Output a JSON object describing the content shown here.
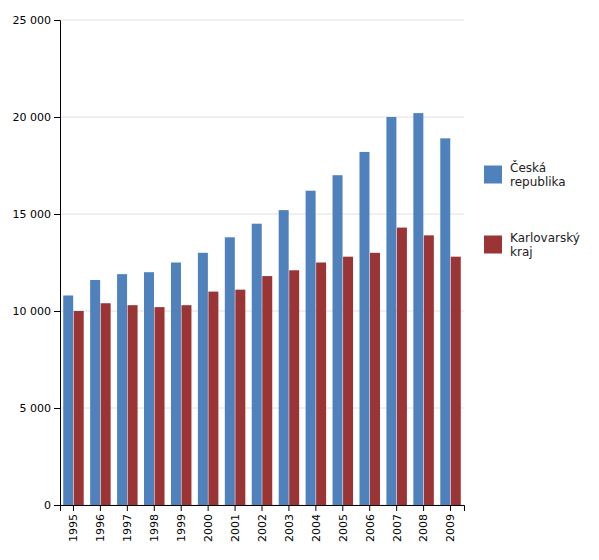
{
  "chart_data": {
    "type": "bar",
    "categories": [
      "1995",
      "1996",
      "1997",
      "1998",
      "1999",
      "2000",
      "2001",
      "2002",
      "2003",
      "2004",
      "2005",
      "2006",
      "2007",
      "2008",
      "2009"
    ],
    "series": [
      {
        "name": "Česká\nrepublika",
        "color": "#4f81bd",
        "values": [
          10800,
          11600,
          11900,
          12000,
          12500,
          13000,
          13800,
          14500,
          15200,
          16200,
          17000,
          18200,
          20000,
          20200,
          18900
        ]
      },
      {
        "name": "Karlovarský\nkraj",
        "color": "#9b3535",
        "values": [
          10000,
          10400,
          10300,
          10200,
          10300,
          11000,
          11100,
          11800,
          12100,
          12500,
          12800,
          13000,
          14300,
          13900,
          12800
        ]
      }
    ],
    "ylim": [
      0,
      25000
    ],
    "yticks": [
      0,
      {
        "value": 5000,
        "label": "5 000"
      },
      {
        "value": 10000,
        "label": "10 000"
      },
      {
        "value": 15000,
        "label": "15 000"
      },
      {
        "value": 20000,
        "label": "20 000"
      },
      {
        "value": 25000,
        "label": "25 000"
      }
    ],
    "grid": true,
    "legend": "right"
  }
}
